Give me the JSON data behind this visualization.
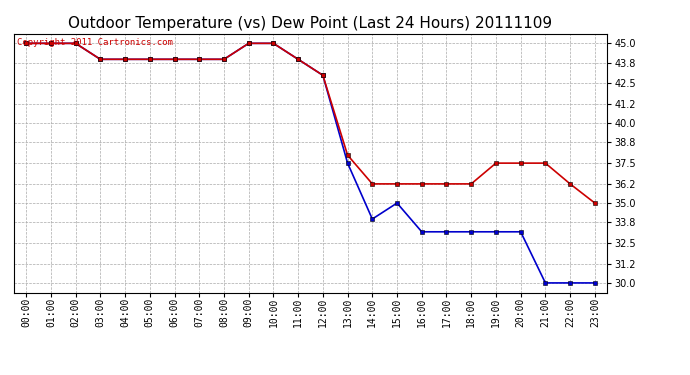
{
  "title": "Outdoor Temperature (vs) Dew Point (Last 24 Hours) 20111109",
  "copyright_text": "Copyright 2011 Cartronics.com",
  "x_labels": [
    "00:00",
    "01:00",
    "02:00",
    "03:00",
    "04:00",
    "05:00",
    "06:00",
    "07:00",
    "08:00",
    "09:00",
    "10:00",
    "11:00",
    "12:00",
    "13:00",
    "14:00",
    "15:00",
    "16:00",
    "17:00",
    "18:00",
    "19:00",
    "20:00",
    "21:00",
    "22:00",
    "23:00"
  ],
  "temp_x": [
    0,
    1,
    2,
    3,
    4,
    5,
    6,
    7,
    8,
    9,
    10,
    11,
    12,
    13,
    14,
    15,
    16,
    17,
    18,
    19,
    20,
    21,
    22,
    23
  ],
  "temp_y": [
    45.0,
    45.0,
    45.0,
    44.0,
    44.0,
    44.0,
    44.0,
    44.0,
    44.0,
    45.0,
    45.0,
    44.0,
    43.0,
    38.0,
    36.2,
    36.2,
    36.2,
    36.2,
    36.2,
    37.5,
    37.5,
    37.5,
    36.2,
    35.0
  ],
  "dew_x": [
    0,
    1,
    2,
    3,
    4,
    5,
    6,
    7,
    8,
    9,
    10,
    11,
    12,
    13,
    14,
    15,
    16,
    17,
    18,
    19,
    20,
    21,
    22,
    23
  ],
  "dew_y": [
    45.0,
    45.0,
    45.0,
    44.0,
    44.0,
    44.0,
    44.0,
    44.0,
    44.0,
    45.0,
    45.0,
    44.0,
    43.0,
    37.5,
    34.0,
    35.0,
    33.2,
    33.2,
    33.2,
    33.2,
    33.2,
    30.0,
    30.0,
    30.0
  ],
  "temp_color": "#cc0000",
  "dew_color": "#0000cc",
  "bg_color": "#ffffff",
  "plot_bg_color": "#ffffff",
  "grid_color": "#aaaaaa",
  "ylim_min": 29.4,
  "ylim_max": 45.6,
  "yticks": [
    30.0,
    31.2,
    32.5,
    33.8,
    35.0,
    36.2,
    37.5,
    38.8,
    40.0,
    41.2,
    42.5,
    43.8,
    45.0
  ],
  "marker": "s",
  "marker_size": 3,
  "line_width": 1.2,
  "title_fontsize": 11,
  "tick_fontsize": 7,
  "copyright_fontsize": 6.5
}
